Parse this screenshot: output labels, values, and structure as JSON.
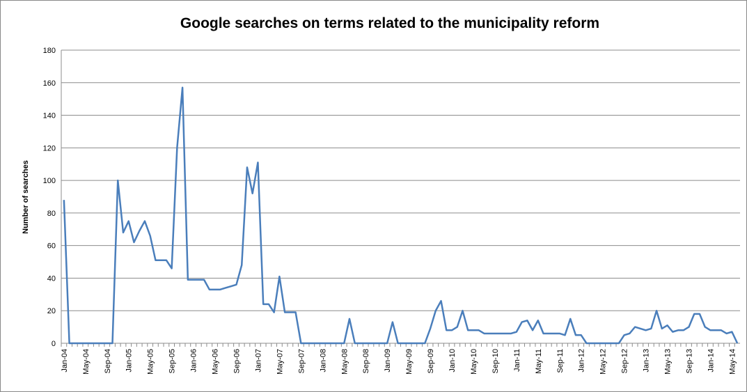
{
  "chart_data": {
    "type": "line",
    "title": "Google searches on terms related to the municipality reform",
    "y_label": "Number of searches",
    "categories": [
      "Jan-04",
      null,
      null,
      null,
      "May-04",
      null,
      null,
      null,
      "Sep-04",
      null,
      null,
      null,
      "Jan-05",
      null,
      null,
      null,
      "May-05",
      null,
      null,
      null,
      "Sep-05",
      null,
      null,
      null,
      "Jan-06",
      null,
      null,
      null,
      "May-06",
      null,
      null,
      null,
      "Sep-06",
      null,
      null,
      null,
      "Jan-07",
      null,
      null,
      null,
      "May-07",
      null,
      null,
      null,
      "Sep-07",
      null,
      null,
      null,
      "Jan-08",
      null,
      null,
      null,
      "May-08",
      null,
      null,
      null,
      "Sep-08",
      null,
      null,
      null,
      "Jan-09",
      null,
      null,
      null,
      "May-09",
      null,
      null,
      null,
      "Sep-09",
      null,
      null,
      null,
      "Jan-10",
      null,
      null,
      null,
      "May-10",
      null,
      null,
      null,
      "Sep-10",
      null,
      null,
      null,
      "Jan-11",
      null,
      null,
      null,
      "May-11",
      null,
      null,
      null,
      "Sep-11",
      null,
      null,
      null,
      "Jan-12",
      null,
      null,
      null,
      "May-12",
      null,
      null,
      null,
      "Sep-12",
      null,
      null,
      null,
      "Jan-13",
      null,
      null,
      null,
      "May-13",
      null,
      null,
      null,
      "Sep-13",
      null,
      null,
      null,
      "Jan-14",
      null,
      null,
      null,
      "May-14",
      null
    ],
    "values": [
      88,
      0,
      0,
      0,
      0,
      0,
      0,
      0,
      0,
      0,
      100,
      68,
      75,
      62,
      69,
      75,
      66,
      51,
      51,
      51,
      46,
      120,
      157,
      39,
      39,
      39,
      39,
      33,
      33,
      33,
      34,
      35,
      36,
      48,
      108,
      92,
      111,
      24,
      24,
      19,
      41,
      19,
      19,
      19,
      0,
      0,
      0,
      0,
      0,
      0,
      0,
      0,
      0,
      15,
      0,
      0,
      0,
      0,
      0,
      0,
      0,
      13,
      0,
      0,
      0,
      0,
      0,
      0,
      9,
      20,
      26,
      8,
      8,
      10,
      20,
      8,
      8,
      8,
      6,
      6,
      6,
      6,
      6,
      6,
      7,
      13,
      14,
      8,
      14,
      6,
      6,
      6,
      6,
      5,
      15,
      5,
      5,
      0,
      0,
      0,
      0,
      0,
      0,
      0,
      5,
      6,
      10,
      9,
      8,
      9,
      20,
      9,
      11,
      7,
      8,
      8,
      10,
      18,
      18,
      10,
      8,
      8,
      8,
      6,
      7,
      0
    ],
    "color": "#4a7ebb",
    "ylim": [
      0,
      180
    ],
    "yticks": [
      0,
      20,
      40,
      60,
      80,
      100,
      120,
      140,
      160,
      180
    ],
    "grid": true
  }
}
